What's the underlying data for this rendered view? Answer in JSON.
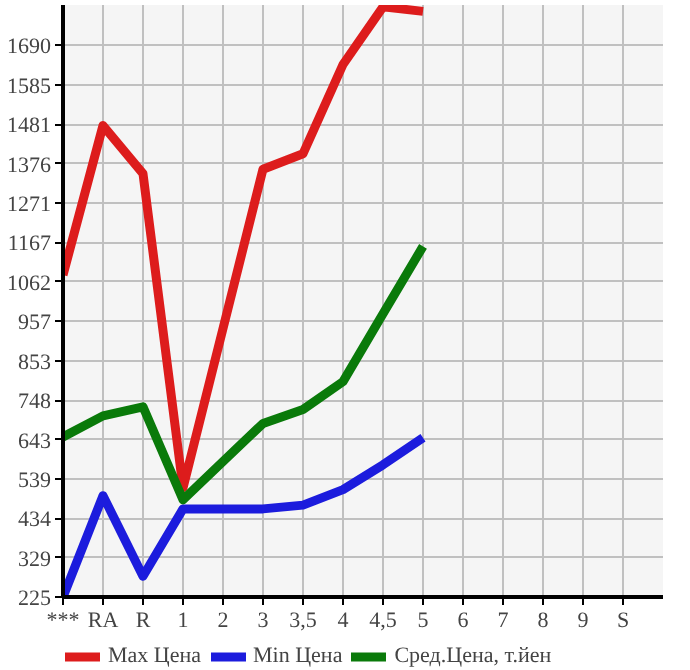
{
  "chart_data": {
    "type": "line",
    "categories": [
      "***",
      "RA",
      "R",
      "1",
      "2",
      "3",
      "3,5",
      "4",
      "4,5",
      "5",
      "6",
      "7",
      "8",
      "9",
      "S"
    ],
    "series": [
      {
        "name": "Max Цена",
        "color": "#dd1c1c",
        "values": [
          1080,
          1477,
          1349,
          515,
          938,
          1361,
          1402,
          1639,
          1792,
          1780,
          null,
          null,
          null,
          null,
          null
        ]
      },
      {
        "name": "Min Цена",
        "color": "#1c1cdd",
        "values": [
          225,
          494,
          280,
          459,
          459,
          459,
          469,
          510,
          576,
          648,
          null,
          null,
          null,
          null,
          null
        ]
      },
      {
        "name": "Сред.Цена, т.йен",
        "color": "#0a7a0a",
        "values": [
          650,
          706,
          730,
          483,
          585,
          686,
          723,
          797,
          977,
          1156,
          null,
          null,
          null,
          null,
          null
        ]
      }
    ],
    "ylim": [
      225,
      1797
    ],
    "yticks": [
      225,
      329,
      434,
      539,
      643,
      748,
      853,
      957,
      1062,
      1167,
      1271,
      1376,
      1481,
      1585,
      1690
    ],
    "grid": true,
    "legend": "bottom",
    "marker": "none",
    "line_style": "solid"
  }
}
